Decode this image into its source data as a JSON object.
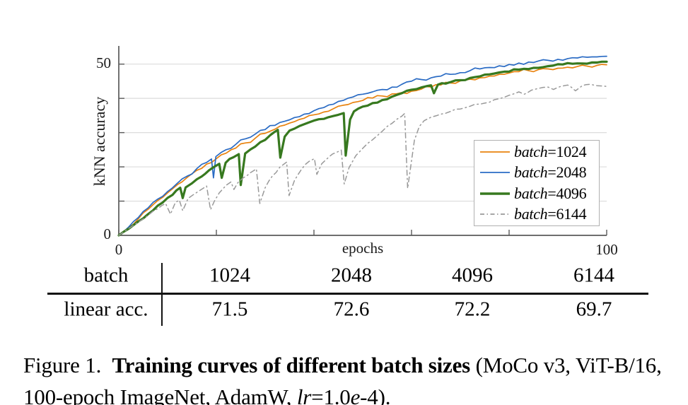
{
  "chart_data": {
    "type": "line",
    "title": "",
    "xlabel": "epochs",
    "ylabel": "kNN accuracy",
    "xlim": [
      0,
      100
    ],
    "ylim": [
      0,
      55
    ],
    "xticks": [
      0,
      20,
      40,
      60,
      80,
      100
    ],
    "yticks": [
      0,
      10,
      20,
      30,
      40,
      50
    ],
    "xtick_labeled": [
      {
        "v": 0,
        "t": "0"
      },
      {
        "v": 100,
        "t": "100"
      }
    ],
    "ytick_labeled": [
      {
        "v": 0,
        "t": "0"
      },
      {
        "v": 50,
        "t": "50"
      }
    ],
    "grid": "horizontal-only",
    "grid_color": "#dcdcdc",
    "axis_color": "#5a5a5a",
    "legend_position": "middle-right",
    "series": [
      {
        "name": "batch=1024",
        "color": "#e8820e",
        "style": "solid",
        "line_width": 1.7,
        "noise": 0.55,
        "points": [
          [
            0,
            0
          ],
          [
            2,
            2.2
          ],
          [
            4,
            4.8
          ],
          [
            6,
            7.6
          ],
          [
            8,
            10.2
          ],
          [
            10,
            12.4
          ],
          [
            12,
            14.8
          ],
          [
            14,
            16.9
          ],
          [
            16,
            19
          ],
          [
            18,
            20.8
          ],
          [
            20,
            22.4
          ],
          [
            22,
            24
          ],
          [
            24,
            25.5
          ],
          [
            26,
            27
          ],
          [
            28,
            28.4
          ],
          [
            30,
            29.8
          ],
          [
            32,
            31
          ],
          [
            34,
            32.2
          ],
          [
            36,
            33.2
          ],
          [
            38,
            34.2
          ],
          [
            40,
            35.2
          ],
          [
            42,
            36
          ],
          [
            44,
            37
          ],
          [
            46,
            38
          ],
          [
            48,
            38.8
          ],
          [
            50,
            39.4
          ],
          [
            52,
            40.1
          ],
          [
            54,
            40.7
          ],
          [
            56,
            41.3
          ],
          [
            58,
            41.7
          ],
          [
            60,
            42.1
          ],
          [
            62,
            42.7
          ],
          [
            64,
            43.3
          ],
          [
            66,
            43.9
          ],
          [
            68,
            44.5
          ],
          [
            70,
            45.1
          ],
          [
            72,
            45.6
          ],
          [
            74,
            46
          ],
          [
            76,
            46.5
          ],
          [
            78,
            47
          ],
          [
            80,
            47.4
          ],
          [
            82,
            47.8
          ],
          [
            84,
            48.1
          ],
          [
            86,
            48.4
          ],
          [
            88,
            48.6
          ],
          [
            90,
            48.8
          ],
          [
            92,
            49.1
          ],
          [
            94,
            49.3
          ],
          [
            96,
            49.4
          ],
          [
            98,
            49.6
          ],
          [
            100,
            49.8
          ]
        ]
      },
      {
        "name": "batch=2048",
        "color": "#2a6bc4",
        "style": "solid",
        "line_width": 1.7,
        "noise": 0.55,
        "points": [
          [
            0,
            0
          ],
          [
            2,
            2.4
          ],
          [
            4,
            5.2
          ],
          [
            6,
            8
          ],
          [
            8,
            10.6
          ],
          [
            10,
            12.8
          ],
          [
            12,
            15.2
          ],
          [
            14,
            17.3
          ],
          [
            16,
            19.5
          ],
          [
            18,
            21.3
          ],
          [
            19,
            22.3
          ],
          [
            19.4,
            16.8
          ],
          [
            19.9,
            23
          ],
          [
            22,
            25
          ],
          [
            24,
            26.6
          ],
          [
            26,
            28.2
          ],
          [
            28,
            29.6
          ],
          [
            30,
            30.9
          ],
          [
            32,
            32.1
          ],
          [
            34,
            33.3
          ],
          [
            36,
            34.4
          ],
          [
            38,
            35.4
          ],
          [
            40,
            36.4
          ],
          [
            42,
            37.3
          ],
          [
            44,
            38.3
          ],
          [
            46,
            39.4
          ],
          [
            48,
            40.4
          ],
          [
            50,
            41.2
          ],
          [
            52,
            41.9
          ],
          [
            54,
            42.6
          ],
          [
            56,
            43.3
          ],
          [
            58,
            44.1
          ],
          [
            60,
            45
          ],
          [
            62,
            45.5
          ],
          [
            64,
            46
          ],
          [
            66,
            46.5
          ],
          [
            68,
            47
          ],
          [
            70,
            47.5
          ],
          [
            72,
            48.1
          ],
          [
            74,
            48.6
          ],
          [
            76,
            49
          ],
          [
            78,
            49.5
          ],
          [
            80,
            49.9
          ],
          [
            82,
            50.3
          ],
          [
            84,
            50.6
          ],
          [
            86,
            50.9
          ],
          [
            88,
            51.1
          ],
          [
            90,
            51.4
          ],
          [
            92,
            51.6
          ],
          [
            94,
            51.8
          ],
          [
            96,
            52
          ],
          [
            98,
            52.1
          ],
          [
            100,
            52.3
          ]
        ]
      },
      {
        "name": "batch=4096",
        "color": "#37791f",
        "style": "solid",
        "line_width": 3.2,
        "noise": 0.32,
        "points": [
          [
            0,
            0
          ],
          [
            3,
            3
          ],
          [
            6,
            6.2
          ],
          [
            9,
            9.6
          ],
          [
            11,
            11.8
          ],
          [
            12.6,
            13.9
          ],
          [
            13.1,
            10.9
          ],
          [
            13.7,
            14
          ],
          [
            15,
            15.2
          ],
          [
            17,
            17.2
          ],
          [
            18.5,
            19
          ],
          [
            20.6,
            20.9
          ],
          [
            21.1,
            16.8
          ],
          [
            21.9,
            21.2
          ],
          [
            23.5,
            22.8
          ],
          [
            24.6,
            23.7
          ],
          [
            25,
            14.7
          ],
          [
            25.9,
            23.9
          ],
          [
            27,
            25.1
          ],
          [
            29,
            27.2
          ],
          [
            31,
            29.2
          ],
          [
            32.6,
            30.8
          ],
          [
            33.1,
            22.7
          ],
          [
            34,
            28.8
          ],
          [
            35,
            30.6
          ],
          [
            37,
            31.9
          ],
          [
            39,
            33
          ],
          [
            41,
            33.9
          ],
          [
            43,
            34.5
          ],
          [
            45,
            35.2
          ],
          [
            46.1,
            35.7
          ],
          [
            46.5,
            23.3
          ],
          [
            47.4,
            33.8
          ],
          [
            48.2,
            36.2
          ],
          [
            50,
            37.6
          ],
          [
            52,
            38.6
          ],
          [
            54,
            39.5
          ],
          [
            56,
            40.5
          ],
          [
            58,
            41.5
          ],
          [
            60,
            42.5
          ],
          [
            62,
            43.2
          ],
          [
            64,
            43.8
          ],
          [
            64.6,
            41.5
          ],
          [
            65.4,
            44
          ],
          [
            67,
            44.3
          ],
          [
            70,
            45.3
          ],
          [
            73,
            46.2
          ],
          [
            76,
            47
          ],
          [
            79,
            47.8
          ],
          [
            82,
            48.4
          ],
          [
            85,
            48.9
          ],
          [
            88,
            49.4
          ],
          [
            91,
            49.9
          ],
          [
            94,
            50.2
          ],
          [
            97,
            50.5
          ],
          [
            100,
            50.7
          ]
        ]
      },
      {
        "name": "batch=6144",
        "color": "#999999",
        "style": "dashdot",
        "line_width": 1.5,
        "noise": 0.28,
        "points": [
          [
            0,
            0
          ],
          [
            3,
            2.9
          ],
          [
            6,
            5.8
          ],
          [
            8,
            7.8
          ],
          [
            9.6,
            9.3
          ],
          [
            10.6,
            6.2
          ],
          [
            11.6,
            9.6
          ],
          [
            12.4,
            10.3
          ],
          [
            13.1,
            7.2
          ],
          [
            14.2,
            10.8
          ],
          [
            15.2,
            11.8
          ],
          [
            16.6,
            13.1
          ],
          [
            18,
            14.4
          ],
          [
            18.8,
            7.5
          ],
          [
            19.6,
            10
          ],
          [
            20.6,
            12.4
          ],
          [
            22,
            14.6
          ],
          [
            23,
            15.6
          ],
          [
            23.6,
            13.4
          ],
          [
            24.4,
            15.4
          ],
          [
            25.5,
            16.8
          ],
          [
            27,
            18.3
          ],
          [
            28.2,
            19.4
          ],
          [
            28.9,
            9.3
          ],
          [
            30,
            13.9
          ],
          [
            31.5,
            17.4
          ],
          [
            33,
            19.9
          ],
          [
            34.4,
            21.4
          ],
          [
            34.9,
            11.6
          ],
          [
            36,
            16
          ],
          [
            37.5,
            19.4
          ],
          [
            39,
            21.6
          ],
          [
            40.1,
            22.4
          ],
          [
            40.6,
            17.8
          ],
          [
            41.6,
            20.9
          ],
          [
            43,
            22.8
          ],
          [
            44.6,
            24.2
          ],
          [
            45.6,
            24.9
          ],
          [
            46.2,
            15
          ],
          [
            47.2,
            19.8
          ],
          [
            48.6,
            23.3
          ],
          [
            50,
            25.4
          ],
          [
            52,
            27.9
          ],
          [
            54,
            30.4
          ],
          [
            56,
            32.7
          ],
          [
            58,
            34.8
          ],
          [
            58.6,
            35.6
          ],
          [
            59.2,
            13.7
          ],
          [
            60.6,
            27.8
          ],
          [
            61.6,
            31.8
          ],
          [
            62.6,
            33.5
          ],
          [
            64,
            34.5
          ],
          [
            66,
            35.4
          ],
          [
            68,
            36.2
          ],
          [
            70,
            36.9
          ],
          [
            72,
            37.7
          ],
          [
            74,
            38.3
          ],
          [
            76,
            38.9
          ],
          [
            78,
            39.9
          ],
          [
            80,
            40.9
          ],
          [
            82,
            41.9
          ],
          [
            83.1,
            41.2
          ],
          [
            84.6,
            42.4
          ],
          [
            86,
            42.9
          ],
          [
            88,
            43.3
          ],
          [
            89.1,
            42.6
          ],
          [
            90.6,
            43.5
          ],
          [
            92,
            43.9
          ],
          [
            93.6,
            42.2
          ],
          [
            95,
            43.7
          ],
          [
            96.6,
            44.1
          ],
          [
            98,
            43.7
          ],
          [
            100,
            43.5
          ]
        ]
      }
    ]
  },
  "table": {
    "header_row": {
      "label": "batch",
      "values": [
        "1024",
        "2048",
        "4096",
        "6144"
      ]
    },
    "data_row": {
      "label": "linear acc.",
      "values": [
        "71.5",
        "72.6",
        "72.2",
        "69.7"
      ]
    }
  },
  "caption": {
    "segments": [
      {
        "t": "Figure 1. ",
        "s": "normal"
      },
      {
        "t": "Training curves of different batch sizes",
        "s": "bold"
      },
      {
        "t": " (MoCo v3, ViT-B/16, 100-epoch ImageNet, AdamW, ",
        "s": "normal"
      },
      {
        "t": "lr",
        "s": "italic"
      },
      {
        "t": "=1.0",
        "s": "normal"
      },
      {
        "t": "e",
        "s": "italic"
      },
      {
        "t": "-4).",
        "s": "normal"
      }
    ]
  }
}
